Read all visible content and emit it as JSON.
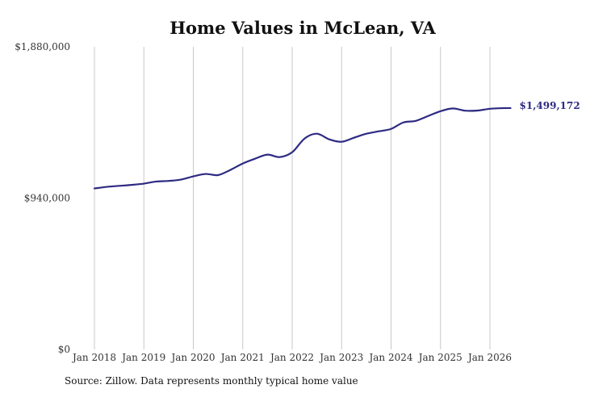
{
  "chart_data": {
    "type": "line",
    "title": "Home Values in McLean, VA",
    "footnote": "Source: Zillow. Data represents monthly typical home value",
    "xlabel": "",
    "ylabel": "",
    "ylim": [
      0,
      1880000
    ],
    "y_ticks": [
      {
        "value": 0,
        "label": "$0"
      },
      {
        "value": 940000,
        "label": "$940,000"
      },
      {
        "value": 1880000,
        "label": "$1,880,000"
      }
    ],
    "x_ticks": [
      {
        "value": "2018-01",
        "label": "Jan 2018"
      },
      {
        "value": "2019-01",
        "label": "Jan 2019"
      },
      {
        "value": "2020-01",
        "label": "Jan 2020"
      },
      {
        "value": "2021-01",
        "label": "Jan 2021"
      },
      {
        "value": "2022-01",
        "label": "Jan 2022"
      },
      {
        "value": "2023-01",
        "label": "Jan 2023"
      },
      {
        "value": "2024-01",
        "label": "Jan 2024"
      },
      {
        "value": "2025-01",
        "label": "Jan 2025"
      },
      {
        "value": "2026-01",
        "label": "Jan 2026"
      }
    ],
    "grid": {
      "vertical": true,
      "horizontal": false
    },
    "line_color": "#2e2a82",
    "end_label": "$1,499,172",
    "series": [
      {
        "points": [
          {
            "x": "2018-01",
            "y": 1000000
          },
          {
            "x": "2018-04",
            "y": 1010000
          },
          {
            "x": "2018-07",
            "y": 1016000
          },
          {
            "x": "2018-10",
            "y": 1022000
          },
          {
            "x": "2019-01",
            "y": 1030000
          },
          {
            "x": "2019-04",
            "y": 1043000
          },
          {
            "x": "2019-07",
            "y": 1047000
          },
          {
            "x": "2019-10",
            "y": 1055000
          },
          {
            "x": "2020-01",
            "y": 1075000
          },
          {
            "x": "2020-04",
            "y": 1090000
          },
          {
            "x": "2020-07",
            "y": 1083000
          },
          {
            "x": "2020-10",
            "y": 1115000
          },
          {
            "x": "2021-01",
            "y": 1155000
          },
          {
            "x": "2021-04",
            "y": 1185000
          },
          {
            "x": "2021-07",
            "y": 1210000
          },
          {
            "x": "2021-10",
            "y": 1195000
          },
          {
            "x": "2022-01",
            "y": 1225000
          },
          {
            "x": "2022-04",
            "y": 1310000
          },
          {
            "x": "2022-07",
            "y": 1340000
          },
          {
            "x": "2022-10",
            "y": 1305000
          },
          {
            "x": "2023-01",
            "y": 1290000
          },
          {
            "x": "2023-04",
            "y": 1315000
          },
          {
            "x": "2023-07",
            "y": 1340000
          },
          {
            "x": "2023-10",
            "y": 1355000
          },
          {
            "x": "2024-01",
            "y": 1370000
          },
          {
            "x": "2024-04",
            "y": 1410000
          },
          {
            "x": "2024-07",
            "y": 1420000
          },
          {
            "x": "2024-10",
            "y": 1450000
          },
          {
            "x": "2025-01",
            "y": 1480000
          },
          {
            "x": "2025-04",
            "y": 1497000
          },
          {
            "x": "2025-07",
            "y": 1483000
          },
          {
            "x": "2025-10",
            "y": 1484000
          },
          {
            "x": "2026-01",
            "y": 1495000
          },
          {
            "x": "2026-04",
            "y": 1499000
          },
          {
            "x": "2026-06",
            "y": 1499172
          }
        ]
      }
    ]
  }
}
